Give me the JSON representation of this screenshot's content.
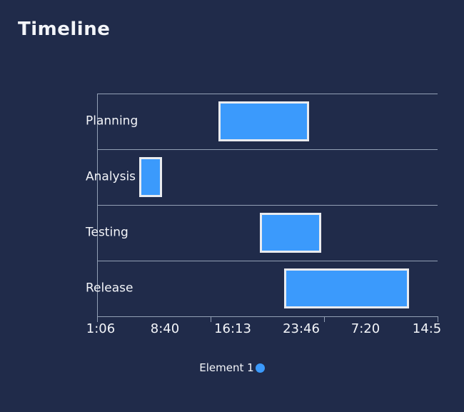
{
  "title": "Timeline",
  "colors": {
    "background": "#202b4a",
    "bar_fill": "#3b9afc",
    "bar_border": "#e9ebef",
    "grid": "#93a0b5",
    "text": "#f3f5f9"
  },
  "legend": {
    "label": "Element 1",
    "marker": "blue-dot"
  },
  "chart_data": {
    "type": "bar",
    "subtype": "gantt-horizontal",
    "title": "Timeline",
    "series_name": "Element 1",
    "categories": [
      "Planning",
      "Analysis",
      "Testing",
      "Release"
    ],
    "x_tick_labels": [
      "1:06",
      "8:40",
      "16:13",
      "23:46",
      "7:20",
      "14:5"
    ],
    "grid": true,
    "legend_position": "bottom",
    "bars": [
      {
        "category": "Planning",
        "start_frac": 0.356,
        "end_frac": 0.623,
        "est_start": "14:30",
        "est_end": "0:35"
      },
      {
        "category": "Analysis",
        "start_frac": 0.124,
        "end_frac": 0.191,
        "est_start": "5:45",
        "est_end": "8:15"
      },
      {
        "category": "Testing",
        "start_frac": 0.478,
        "end_frac": 0.658,
        "est_start": "19:05",
        "est_end": "1:55"
      },
      {
        "category": "Release",
        "start_frac": 0.549,
        "end_frac": 0.916,
        "est_start": "21:50",
        "est_end": "11:40"
      }
    ],
    "axis_note": "x axis runs from 1:06 to 14:5 (next day); times for bars estimated from tick spacing"
  }
}
